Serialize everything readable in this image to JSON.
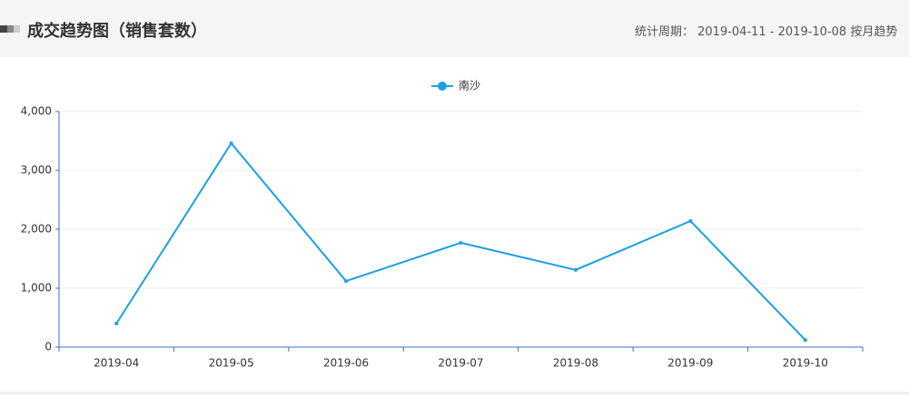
{
  "header": {
    "title": "成交趋势图（销售套数）",
    "period": "统计周期： 2019-04-11 - 2019-10-08 按月趋势"
  },
  "chart_data": {
    "type": "line",
    "categories": [
      "2019-04",
      "2019-05",
      "2019-06",
      "2019-07",
      "2019-08",
      "2019-09",
      "2019-10"
    ],
    "series": [
      {
        "name": "南沙",
        "color": "#1aa1e3",
        "values": [
          400,
          3460,
          1120,
          1770,
          1310,
          2140,
          120
        ]
      }
    ],
    "ylim": [
      0,
      4000
    ],
    "yticks": [
      0,
      {
        "value": 1000,
        "label": "1,000"
      },
      {
        "value": 2000,
        "label": "2,000"
      },
      {
        "value": 3000,
        "label": "3,000"
      },
      {
        "value": 4000,
        "label": "4,000"
      }
    ],
    "grid": true,
    "legend": "top"
  }
}
